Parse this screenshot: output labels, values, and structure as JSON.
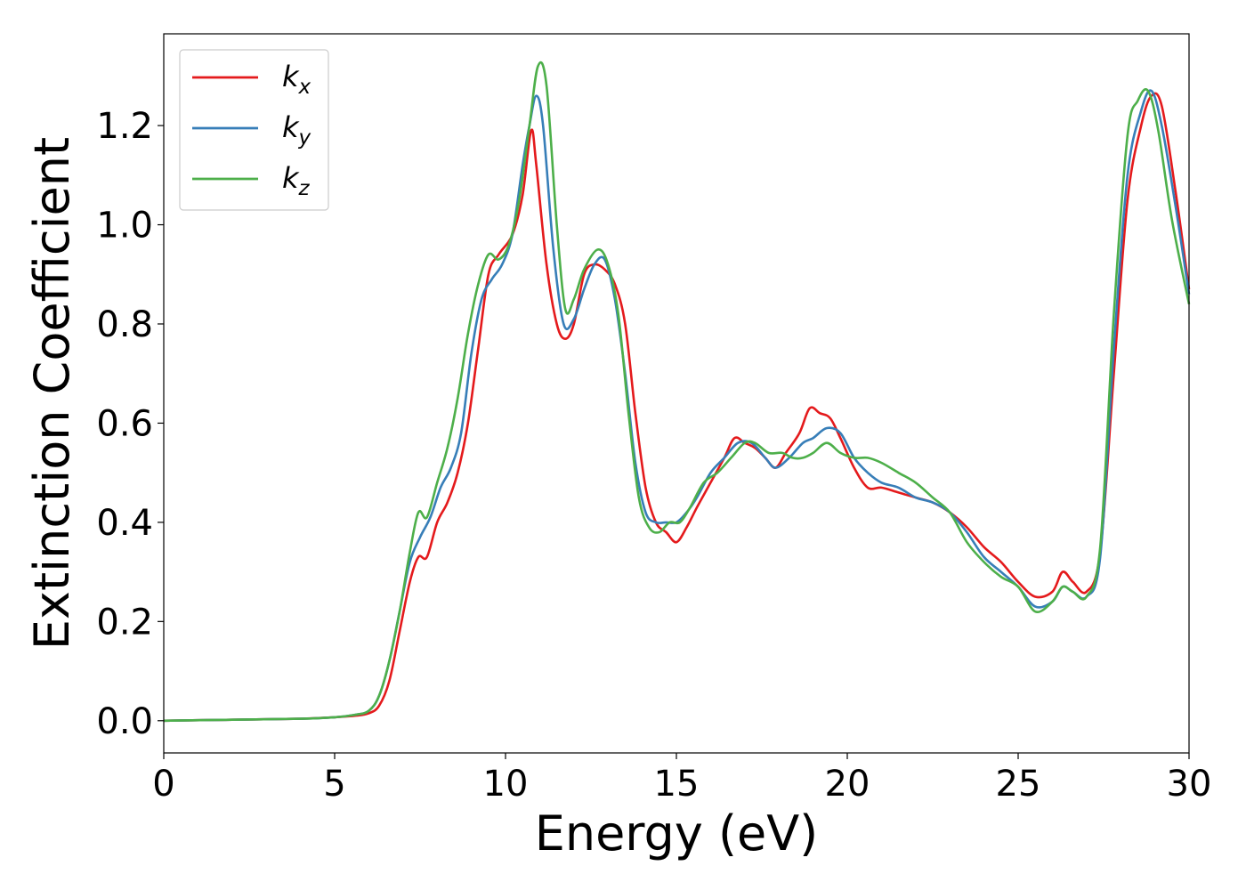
{
  "chart_data": {
    "type": "line",
    "xlabel": "Energy (eV)",
    "ylabel": "Extinction Coefficient",
    "xlim": [
      0,
      30
    ],
    "ylim": [
      -0.065,
      1.385
    ],
    "xticks": [
      0,
      5,
      10,
      15,
      20,
      25,
      30
    ],
    "yticks": [
      0.0,
      0.2,
      0.4,
      0.6,
      0.8,
      1.0,
      1.2
    ],
    "xtick_labels": [
      "0",
      "5",
      "10",
      "15",
      "20",
      "25",
      "30"
    ],
    "ytick_labels": [
      "0.0",
      "0.2",
      "0.4",
      "0.6",
      "0.8",
      "1.0",
      "1.2"
    ],
    "grid": false,
    "legend": "top-left",
    "series": [
      {
        "name": "k",
        "subscript": "x",
        "color": "#e41a1c",
        "points": [
          [
            0,
            0.0
          ],
          [
            2,
            0.002
          ],
          [
            4,
            0.004
          ],
          [
            5,
            0.007
          ],
          [
            5.6,
            0.01
          ],
          [
            6.0,
            0.015
          ],
          [
            6.3,
            0.03
          ],
          [
            6.6,
            0.08
          ],
          [
            6.9,
            0.18
          ],
          [
            7.2,
            0.28
          ],
          [
            7.45,
            0.33
          ],
          [
            7.7,
            0.33
          ],
          [
            8.0,
            0.4
          ],
          [
            8.3,
            0.44
          ],
          [
            8.6,
            0.5
          ],
          [
            8.9,
            0.6
          ],
          [
            9.2,
            0.75
          ],
          [
            9.5,
            0.9
          ],
          [
            9.8,
            0.94
          ],
          [
            10.2,
            0.98
          ],
          [
            10.5,
            1.06
          ],
          [
            10.75,
            1.19
          ],
          [
            10.9,
            1.12
          ],
          [
            11.2,
            0.92
          ],
          [
            11.5,
            0.8
          ],
          [
            11.75,
            0.77
          ],
          [
            12.0,
            0.8
          ],
          [
            12.3,
            0.9
          ],
          [
            12.6,
            0.92
          ],
          [
            12.9,
            0.91
          ],
          [
            13.2,
            0.88
          ],
          [
            13.5,
            0.8
          ],
          [
            13.8,
            0.62
          ],
          [
            14.1,
            0.47
          ],
          [
            14.4,
            0.4
          ],
          [
            14.7,
            0.38
          ],
          [
            15.0,
            0.36
          ],
          [
            15.3,
            0.39
          ],
          [
            15.6,
            0.43
          ],
          [
            16.0,
            0.48
          ],
          [
            16.4,
            0.53
          ],
          [
            16.7,
            0.57
          ],
          [
            17.0,
            0.56
          ],
          [
            17.3,
            0.55
          ],
          [
            17.6,
            0.53
          ],
          [
            17.9,
            0.51
          ],
          [
            18.2,
            0.54
          ],
          [
            18.6,
            0.58
          ],
          [
            18.9,
            0.63
          ],
          [
            19.2,
            0.62
          ],
          [
            19.5,
            0.61
          ],
          [
            19.8,
            0.57
          ],
          [
            20.2,
            0.51
          ],
          [
            20.6,
            0.47
          ],
          [
            21.0,
            0.47
          ],
          [
            21.5,
            0.46
          ],
          [
            22.0,
            0.45
          ],
          [
            22.5,
            0.44
          ],
          [
            23.0,
            0.42
          ],
          [
            23.5,
            0.39
          ],
          [
            24.0,
            0.35
          ],
          [
            24.5,
            0.32
          ],
          [
            25.0,
            0.28
          ],
          [
            25.5,
            0.25
          ],
          [
            26.0,
            0.26
          ],
          [
            26.3,
            0.3
          ],
          [
            26.6,
            0.28
          ],
          [
            27.0,
            0.26
          ],
          [
            27.4,
            0.34
          ],
          [
            27.8,
            0.7
          ],
          [
            28.2,
            1.05
          ],
          [
            28.6,
            1.2
          ],
          [
            28.9,
            1.26
          ],
          [
            29.2,
            1.24
          ],
          [
            29.6,
            1.07
          ],
          [
            30.0,
            0.87
          ]
        ]
      },
      {
        "name": "k",
        "subscript": "y",
        "color": "#377eb8",
        "points": [
          [
            0,
            0.0
          ],
          [
            2,
            0.002
          ],
          [
            4,
            0.004
          ],
          [
            5,
            0.007
          ],
          [
            5.6,
            0.012
          ],
          [
            6.0,
            0.02
          ],
          [
            6.3,
            0.05
          ],
          [
            6.6,
            0.12
          ],
          [
            6.9,
            0.22
          ],
          [
            7.2,
            0.32
          ],
          [
            7.5,
            0.37
          ],
          [
            7.8,
            0.41
          ],
          [
            8.1,
            0.47
          ],
          [
            8.4,
            0.51
          ],
          [
            8.7,
            0.58
          ],
          [
            9.0,
            0.74
          ],
          [
            9.3,
            0.85
          ],
          [
            9.6,
            0.89
          ],
          [
            9.9,
            0.92
          ],
          [
            10.2,
            0.98
          ],
          [
            10.5,
            1.12
          ],
          [
            10.7,
            1.2
          ],
          [
            10.9,
            1.26
          ],
          [
            11.1,
            1.2
          ],
          [
            11.4,
            0.95
          ],
          [
            11.7,
            0.8
          ],
          [
            12.0,
            0.81
          ],
          [
            12.3,
            0.87
          ],
          [
            12.6,
            0.92
          ],
          [
            12.9,
            0.93
          ],
          [
            13.2,
            0.85
          ],
          [
            13.5,
            0.7
          ],
          [
            13.8,
            0.52
          ],
          [
            14.1,
            0.42
          ],
          [
            14.4,
            0.4
          ],
          [
            14.7,
            0.4
          ],
          [
            15.0,
            0.4
          ],
          [
            15.3,
            0.42
          ],
          [
            15.6,
            0.45
          ],
          [
            16.0,
            0.5
          ],
          [
            16.4,
            0.53
          ],
          [
            16.8,
            0.56
          ],
          [
            17.2,
            0.56
          ],
          [
            17.6,
            0.53
          ],
          [
            17.9,
            0.51
          ],
          [
            18.3,
            0.53
          ],
          [
            18.7,
            0.56
          ],
          [
            19.0,
            0.57
          ],
          [
            19.4,
            0.59
          ],
          [
            19.8,
            0.58
          ],
          [
            20.2,
            0.53
          ],
          [
            20.6,
            0.5
          ],
          [
            21.0,
            0.48
          ],
          [
            21.5,
            0.47
          ],
          [
            22.0,
            0.45
          ],
          [
            22.5,
            0.44
          ],
          [
            23.0,
            0.42
          ],
          [
            23.5,
            0.38
          ],
          [
            24.0,
            0.33
          ],
          [
            24.5,
            0.3
          ],
          [
            25.0,
            0.27
          ],
          [
            25.5,
            0.23
          ],
          [
            26.0,
            0.24
          ],
          [
            26.3,
            0.27
          ],
          [
            26.6,
            0.26
          ],
          [
            27.0,
            0.25
          ],
          [
            27.4,
            0.33
          ],
          [
            27.8,
            0.75
          ],
          [
            28.2,
            1.1
          ],
          [
            28.6,
            1.23
          ],
          [
            28.9,
            1.27
          ],
          [
            29.2,
            1.2
          ],
          [
            29.6,
            1.04
          ],
          [
            30.0,
            0.86
          ]
        ]
      },
      {
        "name": "k",
        "subscript": "z",
        "color": "#4daf4a",
        "points": [
          [
            0,
            0.0
          ],
          [
            2,
            0.002
          ],
          [
            4,
            0.004
          ],
          [
            5,
            0.007
          ],
          [
            5.6,
            0.012
          ],
          [
            6.0,
            0.02
          ],
          [
            6.3,
            0.05
          ],
          [
            6.6,
            0.12
          ],
          [
            6.9,
            0.22
          ],
          [
            7.2,
            0.34
          ],
          [
            7.45,
            0.42
          ],
          [
            7.7,
            0.41
          ],
          [
            8.0,
            0.48
          ],
          [
            8.3,
            0.55
          ],
          [
            8.6,
            0.65
          ],
          [
            8.9,
            0.78
          ],
          [
            9.2,
            0.88
          ],
          [
            9.5,
            0.94
          ],
          [
            9.8,
            0.93
          ],
          [
            10.1,
            0.96
          ],
          [
            10.4,
            1.05
          ],
          [
            10.7,
            1.2
          ],
          [
            10.95,
            1.32
          ],
          [
            11.2,
            1.28
          ],
          [
            11.5,
            1.0
          ],
          [
            11.75,
            0.83
          ],
          [
            12.0,
            0.85
          ],
          [
            12.3,
            0.91
          ],
          [
            12.7,
            0.95
          ],
          [
            13.0,
            0.92
          ],
          [
            13.3,
            0.82
          ],
          [
            13.6,
            0.62
          ],
          [
            13.9,
            0.45
          ],
          [
            14.2,
            0.39
          ],
          [
            14.5,
            0.38
          ],
          [
            14.8,
            0.4
          ],
          [
            15.1,
            0.4
          ],
          [
            15.4,
            0.43
          ],
          [
            15.8,
            0.48
          ],
          [
            16.2,
            0.5
          ],
          [
            16.6,
            0.53
          ],
          [
            17.0,
            0.56
          ],
          [
            17.3,
            0.56
          ],
          [
            17.7,
            0.54
          ],
          [
            18.1,
            0.54
          ],
          [
            18.4,
            0.53
          ],
          [
            18.7,
            0.53
          ],
          [
            19.0,
            0.54
          ],
          [
            19.4,
            0.56
          ],
          [
            19.8,
            0.54
          ],
          [
            20.2,
            0.53
          ],
          [
            20.6,
            0.53
          ],
          [
            21.0,
            0.52
          ],
          [
            21.5,
            0.5
          ],
          [
            22.0,
            0.48
          ],
          [
            22.5,
            0.45
          ],
          [
            23.0,
            0.42
          ],
          [
            23.5,
            0.36
          ],
          [
            24.0,
            0.32
          ],
          [
            24.5,
            0.29
          ],
          [
            25.0,
            0.27
          ],
          [
            25.5,
            0.22
          ],
          [
            26.0,
            0.24
          ],
          [
            26.3,
            0.27
          ],
          [
            26.6,
            0.26
          ],
          [
            27.0,
            0.25
          ],
          [
            27.4,
            0.35
          ],
          [
            27.8,
            0.82
          ],
          [
            28.2,
            1.18
          ],
          [
            28.5,
            1.25
          ],
          [
            28.8,
            1.27
          ],
          [
            29.1,
            1.19
          ],
          [
            29.5,
            1.01
          ],
          [
            30.0,
            0.84
          ]
        ]
      }
    ]
  }
}
